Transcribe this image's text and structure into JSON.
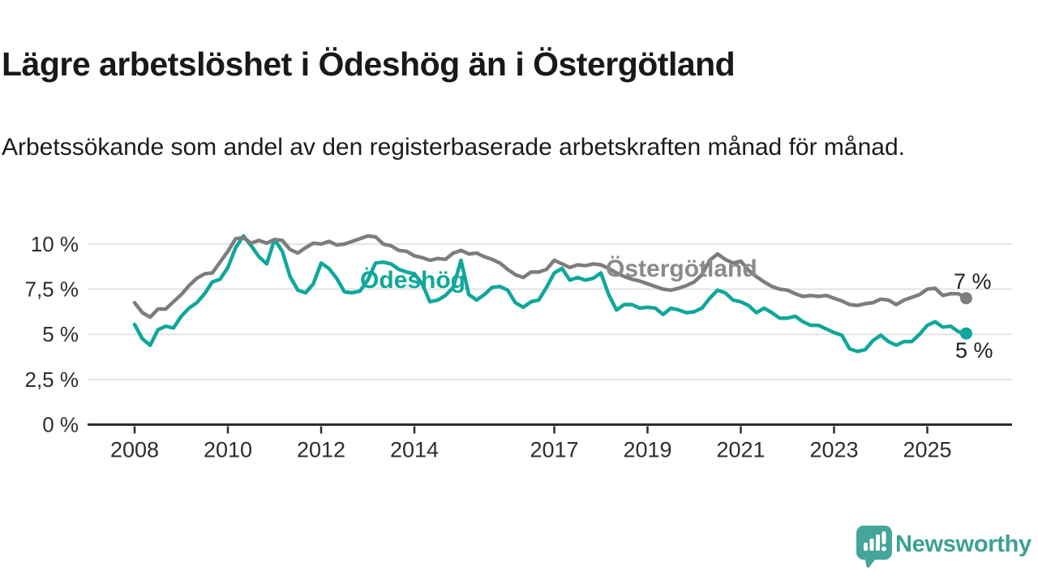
{
  "header": {
    "title": "Lägre arbetslöshet i Ödeshög än i Östergötland",
    "subtitle": "Arbetssökande som andel av den registerbaserade arbetskraften månad för månad."
  },
  "colors": {
    "odeshog_teal": "#0fa79b",
    "ostergotland_gray": "#7d7d7d",
    "series_label_gray": "#8a8a8a",
    "axis": "#2d2d2d",
    "grid": "#e3e3e3",
    "text": "#191919",
    "logo_teal": "#44a69a"
  },
  "chart_data": {
    "type": "line",
    "unit": "%",
    "grid": true,
    "legend": "inline-labels",
    "ylim": [
      0,
      10.9
    ],
    "x_ticks": [
      2008,
      2010,
      2012,
      2014,
      2017,
      2019,
      2021,
      2023,
      2025
    ],
    "y_ticks": [
      {
        "value": 0,
        "label": "0 %"
      },
      {
        "value": 2.5,
        "label": "2,5 %"
      },
      {
        "value": 5,
        "label": "5 %"
      },
      {
        "value": 7.5,
        "label": "7,5 %"
      },
      {
        "value": 10,
        "label": "10 %"
      }
    ],
    "x_start": 2008.0,
    "x_step_years": 0.1666667,
    "series": [
      {
        "name": "Ödeshög",
        "color": "#0fa79b",
        "end_label": "5 %",
        "end_value": 5,
        "values": [
          5.55,
          4.75,
          4.4,
          5.25,
          5.45,
          5.35,
          6.0,
          6.45,
          6.75,
          7.25,
          7.9,
          8.05,
          8.7,
          9.8,
          10.45,
          9.9,
          9.3,
          8.9,
          10.25,
          9.6,
          8.2,
          7.45,
          7.3,
          7.8,
          8.95,
          8.65,
          8.1,
          7.35,
          7.3,
          7.4,
          8.0,
          8.95,
          9.0,
          8.9,
          8.6,
          8.45,
          8.35,
          7.8,
          6.8,
          6.9,
          7.15,
          7.6,
          9.1,
          7.2,
          6.9,
          7.2,
          7.6,
          7.65,
          7.45,
          6.75,
          6.5,
          6.8,
          6.9,
          7.6,
          8.4,
          8.65,
          8.0,
          8.15,
          8.0,
          8.1,
          8.4,
          7.2,
          6.35,
          6.65,
          6.65,
          6.45,
          6.5,
          6.45,
          6.1,
          6.45,
          6.35,
          6.2,
          6.25,
          6.45,
          7.0,
          7.45,
          7.3,
          6.9,
          6.8,
          6.6,
          6.2,
          6.45,
          6.2,
          5.9,
          5.9,
          6.0,
          5.7,
          5.5,
          5.5,
          5.3,
          5.1,
          4.95,
          4.2,
          4.05,
          4.15,
          4.65,
          4.95,
          4.6,
          4.4,
          4.6,
          4.6,
          5.0,
          5.5,
          5.7,
          5.4,
          5.45,
          5.15,
          5.05
        ]
      },
      {
        "name": "Östergötland",
        "color": "#7d7d7d",
        "end_label": "7 %",
        "end_value": 7,
        "values": [
          6.75,
          6.2,
          5.95,
          6.4,
          6.4,
          6.8,
          7.2,
          7.7,
          8.1,
          8.35,
          8.4,
          9.0,
          9.6,
          10.3,
          10.35,
          10.05,
          10.2,
          10.05,
          10.25,
          10.2,
          9.7,
          9.5,
          9.8,
          10.05,
          10.0,
          10.15,
          9.95,
          10.0,
          10.15,
          10.3,
          10.45,
          10.4,
          10.0,
          9.9,
          9.65,
          9.6,
          9.35,
          9.25,
          9.1,
          9.2,
          9.15,
          9.5,
          9.65,
          9.45,
          9.5,
          9.3,
          9.15,
          8.95,
          8.6,
          8.3,
          8.15,
          8.45,
          8.45,
          8.6,
          9.1,
          8.9,
          8.7,
          8.85,
          8.8,
          8.9,
          8.85,
          8.65,
          8.4,
          8.2,
          8.05,
          7.95,
          7.8,
          7.65,
          7.5,
          7.45,
          7.55,
          7.7,
          7.9,
          8.3,
          9.1,
          9.45,
          9.15,
          8.95,
          9.05,
          8.55,
          8.2,
          7.9,
          7.65,
          7.5,
          7.45,
          7.25,
          7.1,
          7.15,
          7.1,
          7.15,
          7.0,
          6.85,
          6.65,
          6.6,
          6.7,
          6.75,
          6.95,
          6.9,
          6.65,
          6.9,
          7.05,
          7.2,
          7.5,
          7.55,
          7.15,
          7.25,
          7.25,
          7.0
        ]
      }
    ]
  },
  "branding": {
    "logo_text": "Newsworthy",
    "logo_icon": "speech-bubble-with-bar-chart-and-exclamation"
  }
}
